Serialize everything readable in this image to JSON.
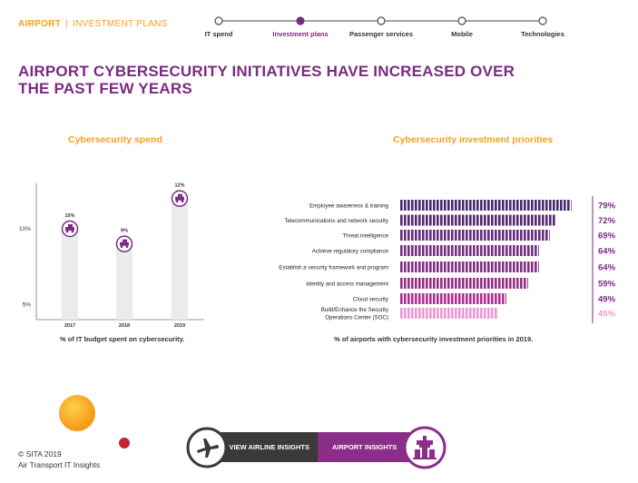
{
  "header": {
    "section": "AIRPORT",
    "separator": "|",
    "subsection": "INVESTMENT PLANS",
    "steps": [
      "IT spend",
      "Investment plans",
      "Passenger services",
      "Mobile",
      "Technologies"
    ],
    "active_step": 1
  },
  "title": "AIRPORT CYBERSECURITY INITIATIVES HAVE INCREASED OVER THE PAST FEW YEARS",
  "colors": {
    "orange": "#f4a11d",
    "purple": "#7b2b83",
    "dark_purple": "#4a2a6e",
    "light_pink": "#e89ad0",
    "gray_bar": "#ebebeb"
  },
  "chart_data": [
    {
      "type": "bar",
      "title": "Cybersecurity spend",
      "categories": [
        "2017",
        "2018",
        "2019"
      ],
      "values": [
        10,
        9,
        12
      ],
      "data_labels": [
        "10%",
        "9%",
        "12%"
      ],
      "ytick_labels": [
        "10%",
        "5%"
      ],
      "ytick_values": [
        10,
        5
      ],
      "ylim": [
        4,
        13
      ],
      "caption": "% of IT budget spent on cybersecurity.",
      "marker_icon": "airport-vehicle-icon"
    },
    {
      "type": "bar",
      "orientation": "horizontal",
      "title": "Cybersecurity investment priorities",
      "categories": [
        "Employee awareness & training",
        "Telecommunications and network security",
        "Threat intelligence",
        "Achieve regulatory compliance",
        "Establish a security framework and program",
        "Identity and access management",
        "Cloud security",
        "Build/Enhance the Security Operations Center (SOC)"
      ],
      "values": [
        79,
        72,
        69,
        64,
        64,
        59,
        49,
        45
      ],
      "data_labels": [
        "79%",
        "72%",
        "69%",
        "64%",
        "64%",
        "59%",
        "49%",
        "45%"
      ],
      "xlim": [
        0,
        80
      ],
      "caption": "% of airports with cybersecurity investment priorities in 2019."
    }
  ],
  "footer": {
    "airline_button": "VIEW AIRLINE INSIGHTS",
    "airport_button": "AIRPORT INSIGHTS",
    "airline_icon": "airplane-icon",
    "airport_icon": "control-tower-icon",
    "copyright": "© SITA 2019",
    "publication": "Air Transport IT Insights"
  }
}
